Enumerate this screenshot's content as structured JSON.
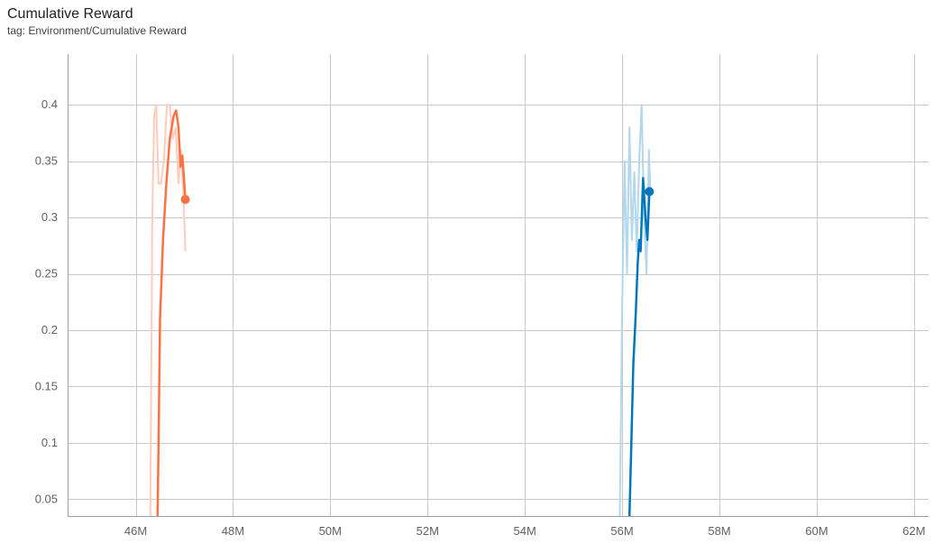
{
  "header": {
    "title": "Cumulative Reward",
    "subtitle": "tag: Environment/Cumulative Reward"
  },
  "chart_data": {
    "type": "line",
    "title": "Cumulative Reward",
    "subtitle": "tag: Environment/Cumulative Reward",
    "xlabel": "",
    "ylabel": "",
    "xlim": [
      44.6,
      62.3
    ],
    "ylim": [
      0.035,
      0.445
    ],
    "x_unit_label": "M",
    "x_ticks": [
      "46M",
      "48M",
      "50M",
      "52M",
      "54M",
      "56M",
      "58M",
      "60M",
      "62M"
    ],
    "x_tick_values": [
      46,
      48,
      50,
      52,
      54,
      56,
      58,
      60,
      62
    ],
    "y_ticks": [
      "0.05",
      "0.1",
      "0.15",
      "0.2",
      "0.25",
      "0.3",
      "0.35",
      "0.4"
    ],
    "y_tick_values": [
      0.05,
      0.1,
      0.15,
      0.2,
      0.25,
      0.3,
      0.35,
      0.4
    ],
    "grid": true,
    "series": [
      {
        "color": "#ff7043",
        "raw_color": "#ffccbc",
        "raw": [
          [
            46.3,
            0.03
          ],
          [
            46.34,
            0.3
          ],
          [
            46.38,
            0.39
          ],
          [
            46.42,
            0.4
          ],
          [
            46.47,
            0.33
          ],
          [
            46.52,
            0.33
          ],
          [
            46.58,
            0.35
          ],
          [
            46.64,
            0.4
          ],
          [
            46.7,
            0.4
          ],
          [
            46.76,
            0.37
          ],
          [
            46.82,
            0.38
          ],
          [
            46.88,
            0.33
          ],
          [
            46.93,
            0.36
          ],
          [
            46.98,
            0.32
          ],
          [
            47.02,
            0.27
          ]
        ],
        "smoothed": [
          [
            46.45,
            0.035
          ],
          [
            46.47,
            0.1
          ],
          [
            46.5,
            0.21
          ],
          [
            46.56,
            0.28
          ],
          [
            46.63,
            0.33
          ],
          [
            46.7,
            0.37
          ],
          [
            46.78,
            0.39
          ],
          [
            46.83,
            0.395
          ],
          [
            46.88,
            0.38
          ],
          [
            46.92,
            0.345
          ],
          [
            46.96,
            0.355
          ],
          [
            47.02,
            0.316
          ]
        ],
        "last_point": [
          47.02,
          0.316
        ]
      },
      {
        "color": "#0077bb",
        "raw_color": "#b3d7ec",
        "raw": [
          [
            55.95,
            0.03
          ],
          [
            56.0,
            0.22
          ],
          [
            56.05,
            0.35
          ],
          [
            56.1,
            0.25
          ],
          [
            56.15,
            0.38
          ],
          [
            56.2,
            0.28
          ],
          [
            56.25,
            0.34
          ],
          [
            56.3,
            0.27
          ],
          [
            56.35,
            0.35
          ],
          [
            56.4,
            0.4
          ],
          [
            56.45,
            0.3
          ],
          [
            56.5,
            0.25
          ],
          [
            56.55,
            0.36
          ],
          [
            56.58,
            0.32
          ]
        ],
        "smoothed": [
          [
            56.15,
            0.035
          ],
          [
            56.19,
            0.1
          ],
          [
            56.23,
            0.17
          ],
          [
            56.28,
            0.215
          ],
          [
            56.32,
            0.26
          ],
          [
            56.35,
            0.28
          ],
          [
            56.38,
            0.27
          ],
          [
            56.43,
            0.335
          ],
          [
            56.48,
            0.3
          ],
          [
            56.52,
            0.28
          ],
          [
            56.56,
            0.323
          ]
        ],
        "last_point": [
          56.56,
          0.323
        ]
      }
    ]
  }
}
